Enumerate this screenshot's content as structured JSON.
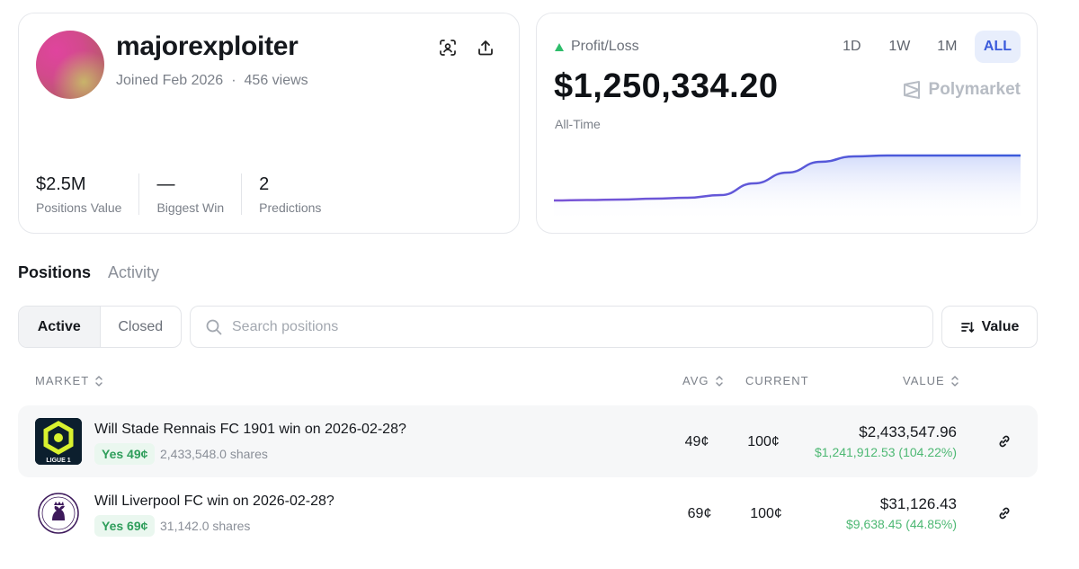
{
  "profile": {
    "username": "majorexploiter",
    "joined": "Joined Feb 2026",
    "separator": "·",
    "views": "456 views",
    "stats": [
      {
        "value": "$2.5M",
        "label": "Positions Value"
      },
      {
        "value": "—",
        "label": "Biggest Win"
      },
      {
        "value": "2",
        "label": "Predictions"
      }
    ],
    "icons": {
      "scan": "scan-face-icon",
      "share": "share-upload-icon"
    }
  },
  "pnl": {
    "label": "Profit/Loss",
    "value": "$1,250,334.20",
    "period_label": "All-Time",
    "brand": "Polymarket",
    "ranges": [
      "1D",
      "1W",
      "1M",
      "ALL"
    ],
    "active_range": "ALL",
    "trend_icon": "up-triangle-icon",
    "colors": {
      "line_start": "#7a55d6",
      "line_end": "#3b5bdb",
      "fill": "#dfe5fb",
      "up": "#2ebd6b"
    }
  },
  "chart_data": {
    "type": "area",
    "series": [
      {
        "values": [
          0.0,
          0.01,
          0.02,
          0.04,
          0.06,
          0.12,
          0.38,
          0.62,
          0.86,
          0.98,
          1.0,
          1.0,
          1.0,
          1.0,
          1.0
        ]
      }
    ],
    "grid": false,
    "legend": "none"
  },
  "tabs": {
    "items": [
      "Positions",
      "Activity"
    ],
    "active": "Positions"
  },
  "filters": {
    "segments": [
      "Active",
      "Closed"
    ],
    "active": "Active",
    "search_placeholder": "Search positions",
    "sort_label": "Value"
  },
  "table": {
    "headers": {
      "market": "MARKET",
      "avg": "AVG",
      "current": "CURRENT",
      "value": "VALUE"
    },
    "rows": [
      {
        "title": "Will Stade Rennais FC 1901 win on 2026-02-28?",
        "outcome": "Yes 49¢",
        "shares": "2,433,548.0 shares",
        "avg": "49¢",
        "current": "100¢",
        "value": "$2,433,547.96",
        "gain": "$1,241,912.53 (104.22%)",
        "logo": "ligue-1-logo",
        "logo_text": "LIGUE 1"
      },
      {
        "title": "Will Liverpool FC win on 2026-02-28?",
        "outcome": "Yes 69¢",
        "shares": "31,142.0 shares",
        "avg": "69¢",
        "current": "100¢",
        "value": "$31,126.43",
        "gain": "$9,638.45 (44.85%)",
        "logo": "premier-league-logo"
      }
    ]
  }
}
